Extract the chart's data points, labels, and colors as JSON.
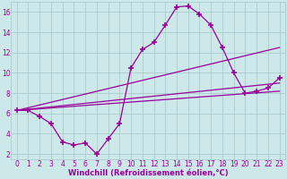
{
  "background_color": "#cce8e8",
  "grid_color": "#aacccc",
  "line_color": "#990099",
  "marker": "+",
  "markersize": 4,
  "markeredgewidth": 1.2,
  "linewidth": 0.9,
  "xlim": [
    -0.5,
    23.5
  ],
  "ylim": [
    1.5,
    17.0
  ],
  "xlabel": "Windchill (Refroidissement éolien,°C)",
  "xlabel_fontsize": 6.0,
  "tick_fontsize": 5.5,
  "xticks": [
    0,
    1,
    2,
    3,
    4,
    5,
    6,
    7,
    8,
    9,
    10,
    11,
    12,
    13,
    14,
    15,
    16,
    17,
    18,
    19,
    20,
    21,
    22,
    23
  ],
  "yticks": [
    2,
    4,
    6,
    8,
    10,
    12,
    14,
    16
  ],
  "series1_x": [
    0,
    1,
    2,
    3,
    4,
    5,
    6,
    7,
    8,
    9,
    10,
    11,
    12,
    13,
    14,
    15,
    16,
    17,
    18,
    19,
    20,
    21,
    22,
    23
  ],
  "series1_y": [
    6.3,
    6.3,
    5.7,
    5.0,
    3.2,
    2.9,
    3.1,
    2.0,
    3.5,
    5.0,
    10.5,
    12.3,
    13.0,
    14.7,
    16.5,
    16.6,
    15.8,
    14.7,
    12.5,
    10.0,
    8.0,
    8.2,
    8.5,
    9.5
  ],
  "series2_x": [
    0,
    23
  ],
  "series2_y": [
    6.3,
    12.5
  ],
  "series3_x": [
    0,
    23
  ],
  "series3_y": [
    6.3,
    9.0
  ],
  "series4_x": [
    0,
    23
  ],
  "series4_y": [
    6.3,
    8.2
  ]
}
